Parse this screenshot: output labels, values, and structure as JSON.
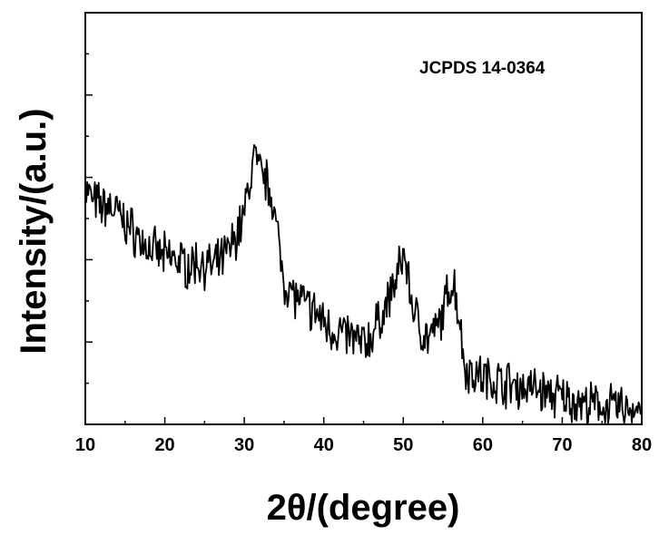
{
  "chart_data": {
    "type": "line",
    "title": "",
    "xlabel": "2θ/(degree)",
    "ylabel": "Intensity/(a.u.)",
    "annotation": "JCPDS 14-0364",
    "xlim": [
      10,
      80
    ],
    "ylim": [
      0,
      1
    ],
    "x_ticks": [
      "10",
      "20",
      "30",
      "40",
      "50",
      "60",
      "70",
      "80"
    ],
    "y_tick_labels_shown": false,
    "grid": false,
    "legend": "none",
    "line_color": "#000000",
    "series": [
      {
        "x": [
          10,
          11,
          12,
          13,
          14,
          15,
          16,
          17,
          18,
          19,
          20,
          21,
          22,
          23,
          24,
          25,
          26,
          27,
          28,
          29,
          30,
          30.5,
          31,
          31.3,
          31.6,
          32,
          32.5,
          33,
          33.5,
          34,
          35,
          36,
          37,
          38,
          39,
          40,
          41,
          42,
          43,
          44,
          45,
          46,
          47,
          48,
          49,
          49.5,
          50,
          50.4,
          51,
          52,
          53,
          54,
          55,
          55.5,
          56,
          56.4,
          57,
          57.5,
          58,
          59,
          60,
          61,
          62,
          63,
          64,
          65,
          66,
          67,
          68,
          69,
          70,
          71,
          72,
          73,
          74,
          75,
          76,
          77,
          78,
          79,
          80
        ],
        "y": [
          0.575,
          0.54,
          0.53,
          0.53,
          0.515,
          0.49,
          0.47,
          0.445,
          0.43,
          0.415,
          0.405,
          0.405,
          0.395,
          0.385,
          0.395,
          0.39,
          0.38,
          0.395,
          0.42,
          0.46,
          0.51,
          0.57,
          0.62,
          0.67,
          0.62,
          0.61,
          0.6,
          0.58,
          0.56,
          0.48,
          0.35,
          0.32,
          0.3,
          0.285,
          0.27,
          0.25,
          0.23,
          0.225,
          0.215,
          0.205,
          0.195,
          0.215,
          0.255,
          0.295,
          0.345,
          0.375,
          0.415,
          0.39,
          0.3,
          0.24,
          0.21,
          0.22,
          0.27,
          0.31,
          0.345,
          0.34,
          0.27,
          0.175,
          0.13,
          0.125,
          0.115,
          0.11,
          0.105,
          0.1,
          0.095,
          0.09,
          0.09,
          0.085,
          0.075,
          0.07,
          0.065,
          0.06,
          0.055,
          0.045,
          0.045,
          0.045,
          0.04,
          0.04,
          0.04,
          0.04,
          0.045
        ]
      }
    ]
  }
}
